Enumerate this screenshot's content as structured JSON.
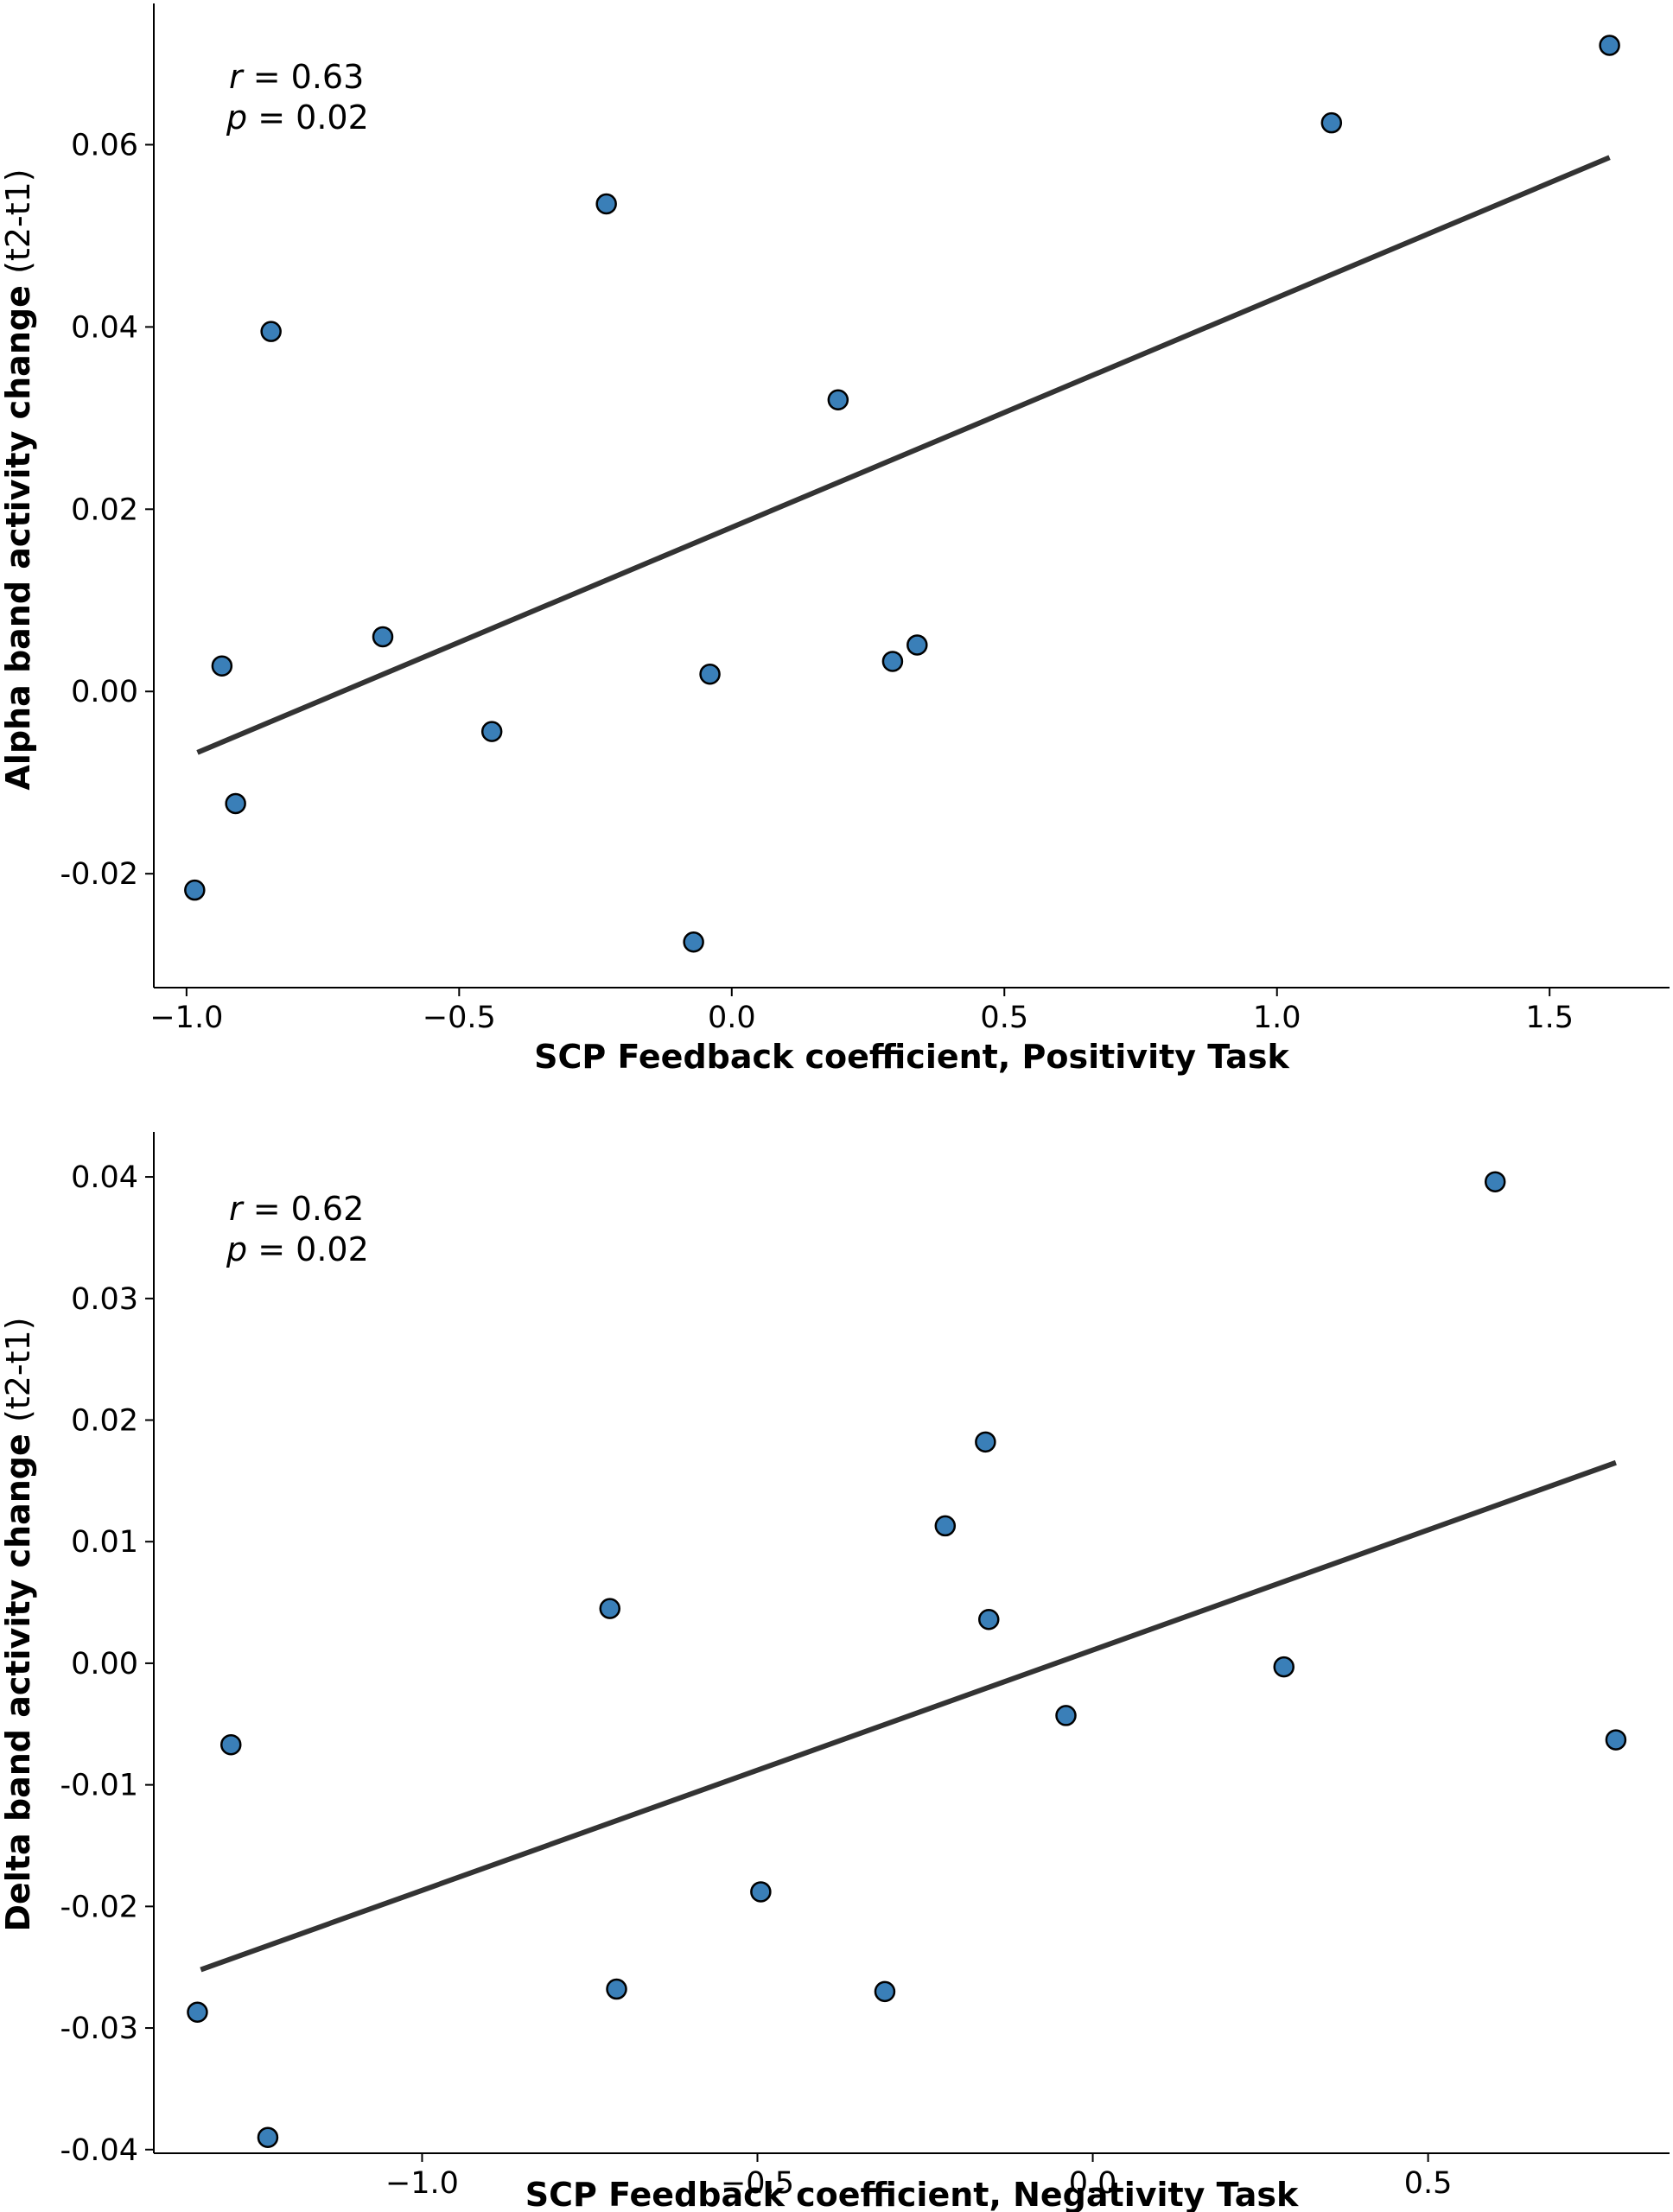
{
  "chart_data": [
    {
      "type": "scatter",
      "xlabel": "SCP Feedback coefficient,  Positivity Task",
      "ylabel": "Alpha band activity change",
      "ylabel_unit": "(t2-t1)",
      "xlim": [
        -1.06,
        1.72
      ],
      "ylim": [
        -0.0325,
        0.0755
      ],
      "xticks": [
        -1.0,
        -0.5,
        0.0,
        0.5,
        1.0,
        1.5
      ],
      "xtick_labels": [
        "−1.0",
        "−0.5",
        "0.0",
        "0.5",
        "1.0",
        "1.5"
      ],
      "yticks": [
        -0.02,
        0.0,
        0.02,
        0.04,
        0.06
      ],
      "ytick_labels": [
        "-0.02",
        "0.00",
        "0.02",
        "0.04",
        "0.06"
      ],
      "annotation": {
        "r_symbol": "r",
        "r_value": "= 0.63",
        "p_symbol": "p",
        "p_value": "= 0.02"
      },
      "points": [
        {
          "x": -0.985,
          "y": -0.0218
        },
        {
          "x": -0.935,
          "y": 0.0028
        },
        {
          "x": -0.91,
          "y": -0.0123
        },
        {
          "x": -0.845,
          "y": 0.0395
        },
        {
          "x": -0.64,
          "y": 0.006
        },
        {
          "x": -0.44,
          "y": -0.0044
        },
        {
          "x": -0.23,
          "y": 0.0535
        },
        {
          "x": -0.07,
          "y": -0.0275
        },
        {
          "x": -0.04,
          "y": 0.0019
        },
        {
          "x": 0.195,
          "y": 0.032
        },
        {
          "x": 0.295,
          "y": 0.0033
        },
        {
          "x": 0.34,
          "y": 0.0051
        },
        {
          "x": 1.1,
          "y": 0.0624
        },
        {
          "x": 1.61,
          "y": 0.0709
        }
      ],
      "fit_line": {
        "x1": -0.98,
        "y1": -0.0067,
        "x2": 1.61,
        "y2": 0.0586
      },
      "point_color": "#3a7fb8",
      "line_color": "#333333"
    },
    {
      "type": "scatter",
      "xlabel": "SCP Feedback coefficient,  Negativity Task",
      "ylabel": "Delta band activity change",
      "ylabel_unit": "(t2-t1)",
      "xlim": [
        -1.4,
        0.86
      ],
      "ylim": [
        -0.0403,
        0.0437
      ],
      "xticks": [
        -1.0,
        -0.5,
        0.0,
        0.5
      ],
      "xtick_labels": [
        "−1.0",
        "−0.5",
        "0.0",
        "0.5"
      ],
      "yticks": [
        -0.04,
        -0.03,
        -0.02,
        -0.01,
        0.0,
        0.01,
        0.02,
        0.03,
        0.04
      ],
      "ytick_labels": [
        "-0.04",
        "-0.03",
        "-0.02",
        "-0.01",
        "0.00",
        "0.01",
        "0.02",
        "0.03",
        "0.04"
      ],
      "annotation": {
        "r_symbol": "r",
        "r_value": "= 0.62",
        "p_symbol": "p",
        "p_value": "= 0.02"
      },
      "points": [
        {
          "x": -1.335,
          "y": -0.0287
        },
        {
          "x": -1.285,
          "y": -0.0067
        },
        {
          "x": -1.23,
          "y": -0.039
        },
        {
          "x": -0.72,
          "y": 0.0045
        },
        {
          "x": -0.71,
          "y": -0.0268
        },
        {
          "x": -0.495,
          "y": -0.0188
        },
        {
          "x": -0.31,
          "y": -0.027
        },
        {
          "x": -0.22,
          "y": 0.0113
        },
        {
          "x": -0.16,
          "y": 0.0182
        },
        {
          "x": -0.155,
          "y": 0.0036
        },
        {
          "x": -0.04,
          "y": -0.0043
        },
        {
          "x": 0.285,
          "y": -0.0003
        },
        {
          "x": 0.6,
          "y": 0.0396
        },
        {
          "x": 0.78,
          "y": -0.0063
        }
      ],
      "fit_line": {
        "x1": -1.33,
        "y1": -0.0252,
        "x2": 0.78,
        "y2": 0.0165
      },
      "point_color": "#3a7fb8",
      "line_color": "#333333"
    }
  ]
}
